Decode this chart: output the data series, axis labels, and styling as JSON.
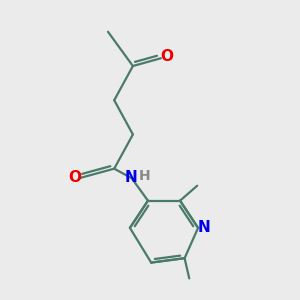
{
  "bg_color": "#ebebeb",
  "bond_color": "#4a7a6a",
  "bond_width": 1.6,
  "O_color": "#ee0000",
  "N_color": "#0000ee",
  "H_color": "#888888",
  "font_size": 9.5,
  "fig_size": [
    3.0,
    3.0
  ],
  "dpi": 100,
  "xlim": [
    2.0,
    8.5
  ],
  "ylim": [
    0.2,
    9.8
  ]
}
